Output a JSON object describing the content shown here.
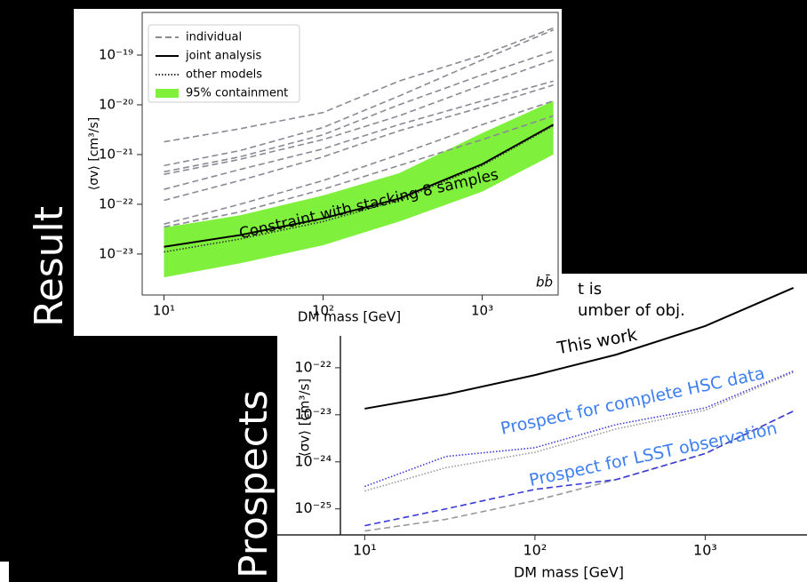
{
  "slide": {
    "labels": [
      "Result",
      "Prospects"
    ],
    "fragments": [
      "t is",
      "umber of obj."
    ]
  },
  "chart_data": [
    {
      "type": "line",
      "xlabel": "DM mass [GeV]",
      "ylabel": "⟨σv⟩ [cm³/s]",
      "log_x": true,
      "log_y": true,
      "legend": "upper left",
      "annotations": [
        {
          "text": "Constraint with stacking 8 samples",
          "color": "#000000"
        },
        {
          "text": "bb̄",
          "color": "#000000"
        }
      ],
      "x": [
        10,
        30,
        100,
        300,
        1000,
        2800
      ],
      "xlim": [
        7.3,
        3000
      ],
      "ylim": [
        1.5e-24,
        7.2e-19
      ],
      "xticks": [
        {
          "value": 10,
          "label": "10¹"
        },
        {
          "value": 100,
          "label": "10²"
        },
        {
          "value": 1000,
          "label": "10³"
        }
      ],
      "yticks": [
        {
          "value": 1e-23,
          "label": "10⁻²³"
        },
        {
          "value": 1e-22,
          "label": "10⁻²²"
        },
        {
          "value": 1e-21,
          "label": "10⁻²¹"
        },
        {
          "value": 1e-20,
          "label": "10⁻²⁰"
        },
        {
          "value": 1e-19,
          "label": "10⁻¹⁹"
        }
      ],
      "series": [
        {
          "name": "95% containment",
          "color": "#7ff03c",
          "style": "band",
          "values": [
            3.4e-23,
            6e-23,
            1.5e-22,
            4.2e-22,
            2.7e-21,
            1.2e-20
          ],
          "low": [
            3.4e-24,
            6.5e-24,
            1.5e-23,
            4.5e-23,
            1.8e-22,
            1e-21
          ]
        },
        {
          "name": "individual",
          "color": "#8a8a94",
          "style": "dashed",
          "values": [
            1.8e-21,
            3.3e-21,
            7e-21,
            3e-20,
            1e-19,
            3.5e-19
          ]
        },
        {
          "color": "#8a8a94",
          "style": "dashed",
          "values": [
            6e-22,
            1.2e-21,
            3.5e-21,
            1.5e-20,
            8e-20,
            3.2e-19
          ]
        },
        {
          "color": "#8a8a94",
          "style": "dashed",
          "values": [
            4.5e-22,
            9e-22,
            2.5e-21,
            1e-20,
            4e-20,
            1.2e-19
          ]
        },
        {
          "color": "#8a8a94",
          "style": "dashed",
          "values": [
            4e-22,
            8e-22,
            2e-21,
            6e-21,
            2.5e-20,
            8e-20
          ]
        },
        {
          "color": "#8a8a94",
          "style": "dashed",
          "values": [
            2e-22,
            5e-22,
            1.3e-21,
            4e-21,
            1.2e-20,
            3e-20
          ]
        },
        {
          "color": "#8a8a94",
          "style": "dashed",
          "values": [
            1.2e-22,
            3e-22,
            9e-22,
            3e-21,
            9e-21,
            2.5e-20
          ]
        },
        {
          "color": "#8a8a94",
          "style": "dashed",
          "values": [
            4e-23,
            1e-22,
            3e-22,
            1e-21,
            4e-21,
            1.2e-20
          ]
        },
        {
          "color": "#8a8a94",
          "style": "dashed",
          "values": [
            3.5e-23,
            7e-23,
            2e-22,
            6e-22,
            2e-21,
            6e-21
          ]
        },
        {
          "name": "joint analysis",
          "color": "#000000",
          "style": "solid",
          "values": [
            1.4e-23,
            2.4e-23,
            5.2e-23,
            1.3e-22,
            6.4e-22,
            4e-21
          ]
        },
        {
          "name": "other models",
          "color": "#333333",
          "style": "dotted",
          "values": [
            1.1e-23,
            2e-23,
            4.5e-23,
            1.2e-22,
            6e-22,
            3.8e-21
          ]
        }
      ]
    },
    {
      "type": "line",
      "xlabel": "DM mass [GeV]",
      "ylabel": "⟨σv⟩ [cm³/s]",
      "log_x": true,
      "log_y": true,
      "annotations": [
        {
          "text": "This work",
          "color": "#000000"
        },
        {
          "text": "Prospect for complete HSC data",
          "color": "#3d7ef0"
        },
        {
          "text": "Prospect for LSST observation",
          "color": "#3d7ef0"
        }
      ],
      "x": [
        10,
        30,
        100,
        300,
        1000,
        3300
      ],
      "xlim": [
        7.2,
        3600
      ],
      "ylim": [
        2.8e-26,
        1e-20
      ],
      "xticks": [
        {
          "value": 10,
          "label": "10¹"
        },
        {
          "value": 100,
          "label": "10²"
        },
        {
          "value": 1000,
          "label": "10³"
        }
      ],
      "yticks": [
        {
          "value": 1e-25,
          "label": "10⁻²⁵"
        },
        {
          "value": 1e-24,
          "label": "10⁻²⁴"
        },
        {
          "value": 1e-23,
          "label": "10⁻²³"
        },
        {
          "value": 1e-22,
          "label": "10⁻²²"
        }
      ],
      "series": [
        {
          "color": "#000000",
          "style": "solid",
          "values": [
            1.35e-23,
            2.7e-23,
            7e-23,
            1.9e-22,
            7.7e-22,
            5e-21
          ]
        },
        {
          "color": "#999999",
          "style": "dotted",
          "values": [
            2.4e-25,
            7.5e-25,
            1.6e-24,
            5e-24,
            1.25e-23,
            8e-23
          ]
        },
        {
          "color": "#3a3ad8",
          "style": "dotted",
          "values": [
            3e-25,
            1.3e-24,
            2e-24,
            6.2e-24,
            1.4e-23,
            8.5e-23
          ]
        },
        {
          "color": "#999999",
          "style": "dashed",
          "values": [
            3.4e-26,
            6e-26,
            1.5e-25,
            4.2e-25,
            1.5e-24,
            1.2e-23
          ]
        },
        {
          "color": "#3a3ad8",
          "style": "dashed",
          "values": [
            4.4e-26,
            1e-25,
            2.6e-25,
            4.2e-25,
            1.5e-24,
            1.2e-23
          ]
        }
      ]
    }
  ]
}
